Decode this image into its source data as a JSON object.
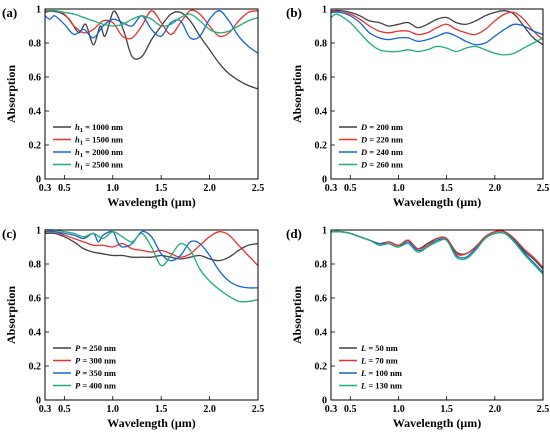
{
  "colors": {
    "black": "#404040",
    "red": "#e8322e",
    "blue": "#1466d2",
    "green": "#1fae79"
  },
  "chart_data": [
    {
      "id": "a",
      "type": "line",
      "panel_label": "(a)",
      "xlabel": "Wavelength (μm)",
      "ylabel": "Absorption",
      "xlim": [
        0.3,
        2.5
      ],
      "ylim": [
        0,
        1
      ],
      "xticks": [
        "0.3",
        "0.5",
        "1.0",
        "1.5",
        "2.0",
        "2.5"
      ],
      "xtick_values": [
        0.3,
        0.5,
        1.0,
        1.5,
        2.0,
        2.5
      ],
      "yticks": [
        "0",
        "0.2",
        "0.4",
        "0.6",
        "0.8",
        "1"
      ],
      "ytick_values": [
        0,
        0.2,
        0.4,
        0.6,
        0.8,
        1.0
      ],
      "legend_position": "bottom-left",
      "series": [
        {
          "name_var": "h",
          "name_sub": "1",
          "name_rest": " = 1000 nm",
          "color": "black",
          "x": [
            0.3,
            0.45,
            0.55,
            0.65,
            0.72,
            0.8,
            0.87,
            0.92,
            1.0,
            1.05,
            1.12,
            1.2,
            1.3,
            1.4,
            1.5,
            1.6,
            1.7,
            1.8,
            1.9,
            2.0,
            2.1,
            2.2,
            2.3,
            2.4,
            2.5
          ],
          "y": [
            0.99,
            0.98,
            0.94,
            0.86,
            0.91,
            0.79,
            0.9,
            0.84,
            0.98,
            0.96,
            0.86,
            0.72,
            0.72,
            0.82,
            0.9,
            0.97,
            0.98,
            0.93,
            0.84,
            0.76,
            0.68,
            0.62,
            0.58,
            0.55,
            0.53
          ]
        },
        {
          "name_var": "h",
          "name_sub": "1",
          "name_rest": " = 1500 nm",
          "color": "red",
          "x": [
            0.3,
            0.4,
            0.5,
            0.6,
            0.7,
            0.8,
            0.9,
            1.0,
            1.1,
            1.2,
            1.3,
            1.4,
            1.5,
            1.6,
            1.7,
            1.8,
            1.9,
            2.0,
            2.1,
            2.2,
            2.3,
            2.4,
            2.5
          ],
          "y": [
            0.98,
            0.99,
            0.97,
            0.9,
            0.86,
            0.88,
            0.93,
            0.92,
            0.84,
            0.83,
            0.9,
            0.99,
            0.92,
            0.85,
            0.92,
            0.99,
            0.97,
            0.9,
            0.84,
            0.86,
            0.93,
            0.98,
            0.99
          ]
        },
        {
          "name_var": "h",
          "name_sub": "1",
          "name_rest": " = 2000 nm",
          "color": "blue",
          "x": [
            0.3,
            0.35,
            0.4,
            0.5,
            0.6,
            0.7,
            0.8,
            0.9,
            1.0,
            1.1,
            1.2,
            1.3,
            1.4,
            1.5,
            1.6,
            1.7,
            1.8,
            1.9,
            2.0,
            2.1,
            2.2,
            2.3,
            2.4,
            2.5
          ],
          "y": [
            0.96,
            0.94,
            0.96,
            0.91,
            0.85,
            0.88,
            0.83,
            0.9,
            0.94,
            0.92,
            0.9,
            0.96,
            0.88,
            0.84,
            0.92,
            0.93,
            0.83,
            0.84,
            0.94,
            0.99,
            0.93,
            0.84,
            0.78,
            0.74
          ]
        },
        {
          "name_var": "h",
          "name_sub": "1",
          "name_rest": " = 2500 nm",
          "color": "green",
          "x": [
            0.3,
            0.4,
            0.5,
            0.6,
            0.7,
            0.8,
            0.9,
            1.0,
            1.1,
            1.2,
            1.3,
            1.4,
            1.5,
            1.6,
            1.7,
            1.8,
            1.9,
            2.0,
            2.1,
            2.2,
            2.3,
            2.4,
            2.5
          ],
          "y": [
            0.99,
            0.99,
            0.98,
            0.97,
            0.95,
            0.93,
            0.91,
            0.9,
            0.91,
            0.94,
            0.96,
            0.94,
            0.9,
            0.91,
            0.95,
            0.97,
            0.93,
            0.88,
            0.86,
            0.87,
            0.9,
            0.93,
            0.95
          ]
        }
      ]
    },
    {
      "id": "b",
      "type": "line",
      "panel_label": "(b)",
      "xlabel": "Wavelength (μm)",
      "ylabel": "Absorption",
      "xlim": [
        0.3,
        2.5
      ],
      "ylim": [
        0,
        1
      ],
      "xticks": [
        "0.3",
        "0.5",
        "1.0",
        "1.5",
        "2.0",
        "2.5"
      ],
      "xtick_values": [
        0.3,
        0.5,
        1.0,
        1.5,
        2.0,
        2.5
      ],
      "yticks": [
        "0",
        "0.2",
        "0.4",
        "0.6",
        "0.8",
        "1"
      ],
      "ytick_values": [
        0,
        0.2,
        0.4,
        0.6,
        0.8,
        1.0
      ],
      "legend_position": "bottom-left",
      "series": [
        {
          "name_var": "D",
          "name_sub": "",
          "name_rest": " = 200 nm",
          "color": "black",
          "x": [
            0.3,
            0.4,
            0.5,
            0.6,
            0.7,
            0.8,
            0.9,
            1.0,
            1.1,
            1.2,
            1.3,
            1.4,
            1.5,
            1.6,
            1.7,
            1.8,
            1.9,
            2.0,
            2.1,
            2.2,
            2.3,
            2.4,
            2.5
          ],
          "y": [
            0.99,
            0.99,
            0.98,
            0.96,
            0.93,
            0.92,
            0.9,
            0.91,
            0.92,
            0.89,
            0.91,
            0.94,
            0.95,
            0.92,
            0.91,
            0.93,
            0.96,
            0.98,
            0.99,
            0.97,
            0.9,
            0.83,
            0.79
          ]
        },
        {
          "name_var": "D",
          "name_sub": "",
          "name_rest": " = 220 nm",
          "color": "red",
          "x": [
            0.3,
            0.4,
            0.5,
            0.6,
            0.7,
            0.8,
            0.9,
            1.0,
            1.1,
            1.2,
            1.3,
            1.4,
            1.5,
            1.6,
            1.7,
            1.8,
            1.9,
            2.0,
            2.1,
            2.2,
            2.3,
            2.4,
            2.5
          ],
          "y": [
            0.99,
            0.98,
            0.97,
            0.94,
            0.9,
            0.87,
            0.86,
            0.87,
            0.87,
            0.85,
            0.86,
            0.89,
            0.91,
            0.88,
            0.86,
            0.85,
            0.88,
            0.93,
            0.97,
            0.98,
            0.94,
            0.87,
            0.82
          ]
        },
        {
          "name_var": "D",
          "name_sub": "",
          "name_rest": " = 240 nm",
          "color": "blue",
          "x": [
            0.3,
            0.4,
            0.5,
            0.6,
            0.7,
            0.8,
            0.9,
            1.0,
            1.1,
            1.2,
            1.3,
            1.4,
            1.5,
            1.6,
            1.7,
            1.8,
            1.9,
            2.0,
            2.1,
            2.2,
            2.3,
            2.4,
            2.5
          ],
          "y": [
            0.98,
            0.98,
            0.96,
            0.92,
            0.86,
            0.83,
            0.82,
            0.83,
            0.83,
            0.81,
            0.82,
            0.84,
            0.86,
            0.84,
            0.81,
            0.79,
            0.8,
            0.84,
            0.88,
            0.91,
            0.9,
            0.87,
            0.85
          ]
        },
        {
          "name_var": "D",
          "name_sub": "",
          "name_rest": " = 260 nm",
          "color": "green",
          "x": [
            0.3,
            0.35,
            0.4,
            0.5,
            0.6,
            0.7,
            0.8,
            0.9,
            1.0,
            1.1,
            1.2,
            1.3,
            1.4,
            1.5,
            1.6,
            1.7,
            1.8,
            1.9,
            2.0,
            2.1,
            2.2,
            2.3,
            2.4,
            2.5
          ],
          "y": [
            0.95,
            0.97,
            0.96,
            0.92,
            0.86,
            0.8,
            0.76,
            0.75,
            0.75,
            0.76,
            0.75,
            0.76,
            0.78,
            0.77,
            0.75,
            0.77,
            0.78,
            0.76,
            0.74,
            0.73,
            0.74,
            0.77,
            0.8,
            0.83
          ]
        }
      ]
    },
    {
      "id": "c",
      "type": "line",
      "panel_label": "(c)",
      "xlabel": "Wavelength (μm)",
      "ylabel": "Absorption",
      "xlim": [
        0.3,
        2.5
      ],
      "ylim": [
        0,
        1
      ],
      "xticks": [
        "0.3",
        "0.5",
        "1.0",
        "1.5",
        "2.0",
        "2.5"
      ],
      "xtick_values": [
        0.3,
        0.5,
        1.0,
        1.5,
        2.0,
        2.5
      ],
      "yticks": [
        "0",
        "0.2",
        "0.4",
        "0.6",
        "0.8",
        "1"
      ],
      "ytick_values": [
        0,
        0.2,
        0.4,
        0.6,
        0.8,
        1.0
      ],
      "legend_position": "bottom-left",
      "series": [
        {
          "name_var": "P",
          "name_sub": "",
          "name_rest": " = 250 nm",
          "color": "black",
          "x": [
            0.3,
            0.4,
            0.5,
            0.6,
            0.7,
            0.8,
            0.9,
            1.0,
            1.1,
            1.2,
            1.3,
            1.4,
            1.5,
            1.6,
            1.7,
            1.8,
            1.9,
            2.0,
            2.1,
            2.2,
            2.3,
            2.4,
            2.5
          ],
          "y": [
            0.98,
            0.98,
            0.96,
            0.93,
            0.89,
            0.87,
            0.86,
            0.85,
            0.85,
            0.84,
            0.84,
            0.84,
            0.85,
            0.84,
            0.83,
            0.84,
            0.85,
            0.83,
            0.82,
            0.84,
            0.88,
            0.91,
            0.92
          ]
        },
        {
          "name_var": "P",
          "name_sub": "",
          "name_rest": " = 300 nm",
          "color": "red",
          "x": [
            0.3,
            0.4,
            0.5,
            0.6,
            0.7,
            0.8,
            0.9,
            1.0,
            1.1,
            1.2,
            1.3,
            1.4,
            1.5,
            1.6,
            1.7,
            1.8,
            1.9,
            2.0,
            2.1,
            2.2,
            2.3,
            2.4,
            2.5
          ],
          "y": [
            0.99,
            0.99,
            0.97,
            0.95,
            0.93,
            0.91,
            0.91,
            0.9,
            0.92,
            0.89,
            0.88,
            0.87,
            0.88,
            0.86,
            0.84,
            0.86,
            0.91,
            0.96,
            0.99,
            0.97,
            0.91,
            0.85,
            0.79
          ]
        },
        {
          "name_var": "P",
          "name_sub": "",
          "name_rest": " = 350 nm",
          "color": "blue",
          "x": [
            0.3,
            0.4,
            0.5,
            0.6,
            0.7,
            0.8,
            0.85,
            0.9,
            1.0,
            1.05,
            1.1,
            1.2,
            1.3,
            1.4,
            1.5,
            1.6,
            1.7,
            1.8,
            1.9,
            2.0,
            2.1,
            2.2,
            2.3,
            2.4,
            2.5
          ],
          "y": [
            0.99,
            0.99,
            0.98,
            0.97,
            0.95,
            0.98,
            0.93,
            0.97,
            0.99,
            0.93,
            0.9,
            0.92,
            0.99,
            0.96,
            0.86,
            0.82,
            0.85,
            0.93,
            0.92,
            0.85,
            0.76,
            0.7,
            0.67,
            0.66,
            0.66
          ]
        },
        {
          "name_var": "P",
          "name_sub": "",
          "name_rest": " = 400 nm",
          "color": "green",
          "x": [
            0.3,
            0.4,
            0.5,
            0.6,
            0.7,
            0.8,
            0.9,
            1.0,
            1.1,
            1.2,
            1.3,
            1.4,
            1.5,
            1.6,
            1.7,
            1.8,
            1.9,
            2.0,
            2.1,
            2.2,
            2.3,
            2.4,
            2.5
          ],
          "y": [
            1.0,
            1.0,
            0.99,
            0.98,
            0.96,
            0.98,
            0.95,
            0.99,
            0.96,
            0.93,
            0.98,
            0.9,
            0.79,
            0.85,
            0.92,
            0.88,
            0.77,
            0.7,
            0.65,
            0.61,
            0.58,
            0.58,
            0.59
          ]
        }
      ]
    },
    {
      "id": "d",
      "type": "line",
      "panel_label": "(d)",
      "xlabel": "Wavelength (μm)",
      "ylabel": "Absorption",
      "xlim": [
        0.3,
        2.5
      ],
      "ylim": [
        0,
        1
      ],
      "xticks": [
        "0.3",
        "0.5",
        "1.0",
        "1.5",
        "2.0",
        "2.5"
      ],
      "xtick_values": [
        0.3,
        0.5,
        1.0,
        1.5,
        2.0,
        2.5
      ],
      "yticks": [
        "0",
        "0.2",
        "0.4",
        "0.6",
        "0.8",
        "1"
      ],
      "ytick_values": [
        0,
        0.2,
        0.4,
        0.6,
        0.8,
        1.0
      ],
      "legend_position": "bottom-left",
      "series": [
        {
          "name_var": "L",
          "name_sub": "",
          "name_rest": " = 50 nm",
          "color": "black",
          "x": [
            0.3,
            0.4,
            0.5,
            0.6,
            0.7,
            0.8,
            0.9,
            1.0,
            1.1,
            1.2,
            1.3,
            1.4,
            1.5,
            1.6,
            1.7,
            1.8,
            1.9,
            2.0,
            2.1,
            2.2,
            2.3,
            2.4,
            2.5
          ],
          "y": [
            0.99,
            0.99,
            0.98,
            0.96,
            0.94,
            0.92,
            0.93,
            0.91,
            0.94,
            0.89,
            0.92,
            0.95,
            0.95,
            0.87,
            0.86,
            0.9,
            0.96,
            0.99,
            0.99,
            0.95,
            0.88,
            0.83,
            0.77
          ]
        },
        {
          "name_var": "L",
          "name_sub": "",
          "name_rest": " = 70 nm",
          "color": "red",
          "x": [
            0.3,
            0.4,
            0.5,
            0.6,
            0.7,
            0.8,
            0.9,
            1.0,
            1.1,
            1.2,
            1.3,
            1.4,
            1.5,
            1.6,
            1.7,
            1.8,
            1.9,
            2.0,
            2.1,
            2.2,
            2.3,
            2.4,
            2.5
          ],
          "y": [
            0.99,
            0.99,
            0.98,
            0.96,
            0.94,
            0.92,
            0.93,
            0.91,
            0.94,
            0.89,
            0.91,
            0.95,
            0.95,
            0.86,
            0.86,
            0.9,
            0.96,
            0.99,
            0.99,
            0.95,
            0.89,
            0.84,
            0.78
          ]
        },
        {
          "name_var": "L",
          "name_sub": "",
          "name_rest": " = 100 nm",
          "color": "blue",
          "x": [
            0.3,
            0.4,
            0.5,
            0.6,
            0.7,
            0.8,
            0.9,
            1.0,
            1.1,
            1.2,
            1.3,
            1.4,
            1.5,
            1.6,
            1.7,
            1.8,
            1.9,
            2.0,
            2.1,
            2.2,
            2.3,
            2.4,
            2.5
          ],
          "y": [
            0.99,
            0.99,
            0.98,
            0.96,
            0.94,
            0.92,
            0.92,
            0.9,
            0.93,
            0.88,
            0.9,
            0.94,
            0.94,
            0.85,
            0.84,
            0.89,
            0.95,
            0.98,
            0.98,
            0.94,
            0.87,
            0.81,
            0.75
          ]
        },
        {
          "name_var": "L",
          "name_sub": "",
          "name_rest": " = 130 nm",
          "color": "green",
          "x": [
            0.3,
            0.4,
            0.5,
            0.6,
            0.7,
            0.8,
            0.9,
            1.0,
            1.1,
            1.2,
            1.3,
            1.4,
            1.5,
            1.6,
            1.7,
            1.8,
            1.9,
            2.0,
            2.1,
            2.2,
            2.3,
            2.4,
            2.5
          ],
          "y": [
            0.99,
            0.99,
            0.98,
            0.96,
            0.94,
            0.91,
            0.92,
            0.9,
            0.92,
            0.87,
            0.9,
            0.93,
            0.94,
            0.84,
            0.83,
            0.88,
            0.95,
            0.98,
            0.98,
            0.93,
            0.86,
            0.8,
            0.74
          ]
        }
      ]
    }
  ]
}
